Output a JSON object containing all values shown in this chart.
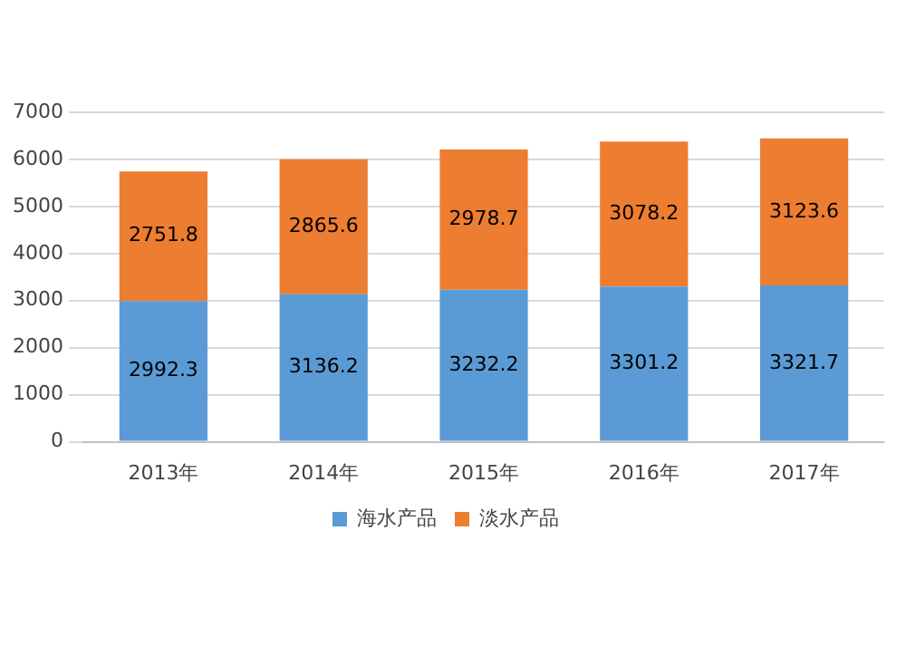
{
  "chart_data": {
    "type": "bar",
    "stacked": true,
    "categories": [
      "2013年",
      "2014年",
      "2015年",
      "2016年",
      "2017年"
    ],
    "series": [
      {
        "name": "海水产品",
        "color": "#5b9bd5",
        "values": [
          2992.3,
          3136.2,
          3232.2,
          3301.2,
          3321.7
        ]
      },
      {
        "name": "淡水产品",
        "color": "#ed7d31",
        "values": [
          2751.8,
          2865.6,
          2978.7,
          3078.2,
          3123.6
        ]
      }
    ],
    "ylim": [
      0,
      7000
    ],
    "yticks": [
      0,
      1000,
      2000,
      3000,
      4000,
      5000,
      6000,
      7000
    ],
    "grid": "y",
    "legend": "bottom",
    "data_labels": true
  }
}
